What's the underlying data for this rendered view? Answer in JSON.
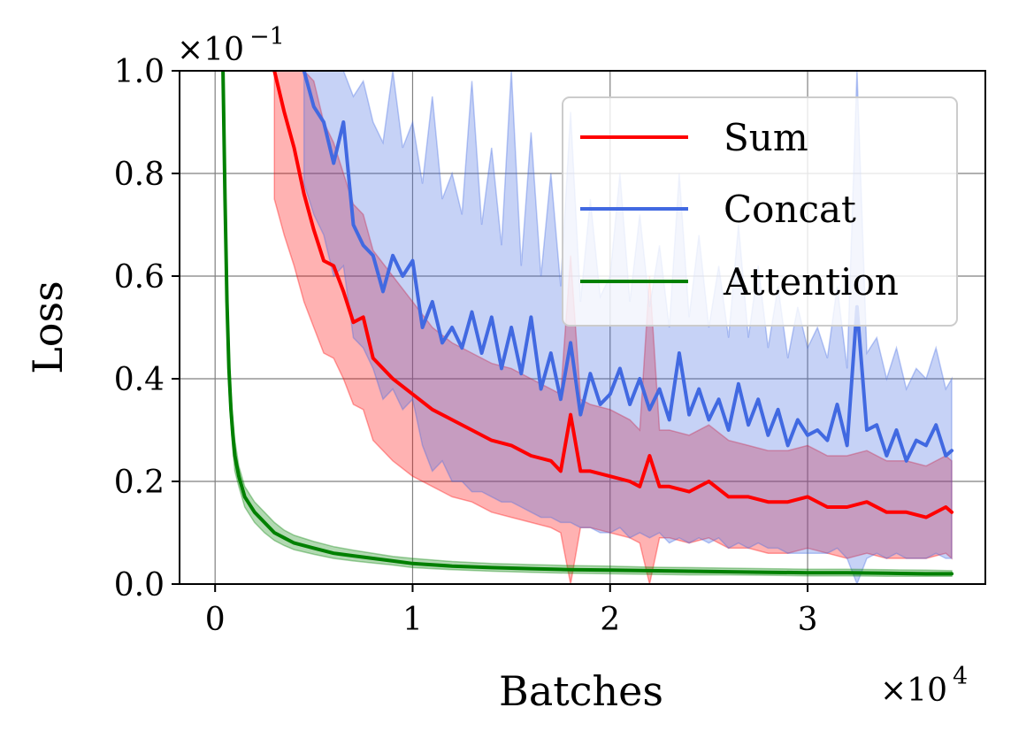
{
  "chart_data": {
    "type": "line",
    "title": "",
    "xlabel": "Batches",
    "ylabel": "Loss",
    "x_multiplier": "×10",
    "x_multiplier_exp": "4",
    "y_multiplier": "×10",
    "y_multiplier_exp": "−1",
    "xlim": [
      -0.18,
      3.9
    ],
    "ylim": [
      0.0,
      1.0
    ],
    "xticks": [
      0,
      1,
      2,
      3
    ],
    "xtick_labels": [
      "0",
      "1",
      "2",
      "3"
    ],
    "yticks": [
      0.0,
      0.2,
      0.4,
      0.6,
      0.8,
      1.0
    ],
    "ytick_labels": [
      "0.0",
      "0.2",
      "0.4",
      "0.6",
      "0.8",
      "1.0"
    ],
    "grid": true,
    "legend_position": "top-right",
    "series": [
      {
        "name": "Sum",
        "color": "#ff0000",
        "x": [
          0.3,
          0.35,
          0.4,
          0.45,
          0.5,
          0.55,
          0.6,
          0.65,
          0.7,
          0.75,
          0.8,
          0.9,
          1.0,
          1.1,
          1.2,
          1.3,
          1.4,
          1.5,
          1.6,
          1.7,
          1.75,
          1.8,
          1.85,
          1.9,
          2.0,
          2.1,
          2.15,
          2.2,
          2.25,
          2.3,
          2.4,
          2.5,
          2.6,
          2.7,
          2.8,
          2.9,
          3.0,
          3.1,
          3.2,
          3.3,
          3.4,
          3.5,
          3.6,
          3.7,
          3.73
        ],
        "values": [
          1.0,
          0.92,
          0.85,
          0.76,
          0.69,
          0.63,
          0.62,
          0.57,
          0.51,
          0.52,
          0.44,
          0.4,
          0.37,
          0.34,
          0.32,
          0.3,
          0.28,
          0.27,
          0.25,
          0.24,
          0.22,
          0.33,
          0.22,
          0.22,
          0.21,
          0.2,
          0.19,
          0.25,
          0.19,
          0.19,
          0.18,
          0.2,
          0.17,
          0.17,
          0.16,
          0.16,
          0.17,
          0.15,
          0.15,
          0.16,
          0.14,
          0.14,
          0.13,
          0.15,
          0.14
        ],
        "band_upper": [
          1.0,
          1.0,
          1.0,
          1.0,
          0.98,
          0.9,
          0.86,
          0.8,
          0.74,
          0.72,
          0.65,
          0.6,
          0.55,
          0.5,
          0.47,
          0.45,
          0.43,
          0.42,
          0.4,
          0.38,
          0.37,
          0.64,
          0.36,
          0.35,
          0.34,
          0.32,
          0.3,
          0.6,
          0.3,
          0.3,
          0.29,
          0.31,
          0.28,
          0.27,
          0.26,
          0.26,
          0.27,
          0.25,
          0.25,
          0.26,
          0.24,
          0.24,
          0.23,
          0.25,
          0.24
        ],
        "band_lower": [
          0.75,
          0.68,
          0.62,
          0.55,
          0.5,
          0.45,
          0.44,
          0.4,
          0.35,
          0.34,
          0.28,
          0.24,
          0.21,
          0.19,
          0.17,
          0.16,
          0.14,
          0.13,
          0.12,
          0.11,
          0.1,
          0.0,
          0.11,
          0.11,
          0.1,
          0.09,
          0.08,
          0.0,
          0.09,
          0.09,
          0.08,
          0.09,
          0.07,
          0.07,
          0.06,
          0.06,
          0.07,
          0.06,
          0.05,
          0.06,
          0.05,
          0.05,
          0.05,
          0.06,
          0.05
        ]
      },
      {
        "name": "Concat",
        "color": "#4169e1",
        "x": [
          0.45,
          0.5,
          0.55,
          0.6,
          0.65,
          0.7,
          0.75,
          0.8,
          0.85,
          0.9,
          0.95,
          1.0,
          1.05,
          1.1,
          1.15,
          1.2,
          1.25,
          1.3,
          1.35,
          1.4,
          1.45,
          1.5,
          1.55,
          1.6,
          1.65,
          1.7,
          1.75,
          1.8,
          1.85,
          1.9,
          1.95,
          2.0,
          2.05,
          2.1,
          2.15,
          2.2,
          2.25,
          2.3,
          2.35,
          2.4,
          2.45,
          2.5,
          2.55,
          2.6,
          2.65,
          2.7,
          2.75,
          2.8,
          2.85,
          2.9,
          2.95,
          3.0,
          3.05,
          3.1,
          3.15,
          3.2,
          3.25,
          3.3,
          3.35,
          3.4,
          3.45,
          3.5,
          3.55,
          3.6,
          3.65,
          3.7,
          3.73
        ],
        "values": [
          1.0,
          0.93,
          0.9,
          0.82,
          0.9,
          0.7,
          0.66,
          0.64,
          0.57,
          0.64,
          0.6,
          0.63,
          0.5,
          0.55,
          0.47,
          0.5,
          0.46,
          0.53,
          0.45,
          0.52,
          0.42,
          0.5,
          0.41,
          0.52,
          0.38,
          0.45,
          0.36,
          0.47,
          0.33,
          0.41,
          0.35,
          0.37,
          0.42,
          0.35,
          0.4,
          0.34,
          0.38,
          0.32,
          0.45,
          0.33,
          0.38,
          0.32,
          0.36,
          0.3,
          0.39,
          0.31,
          0.36,
          0.29,
          0.34,
          0.27,
          0.32,
          0.29,
          0.3,
          0.28,
          0.35,
          0.27,
          0.54,
          0.3,
          0.31,
          0.25,
          0.3,
          0.24,
          0.28,
          0.27,
          0.31,
          0.25,
          0.26
        ],
        "band_upper": [
          1.0,
          1.0,
          1.0,
          1.0,
          1.0,
          0.95,
          0.98,
          0.9,
          0.86,
          1.0,
          0.85,
          0.9,
          0.78,
          0.95,
          0.75,
          0.8,
          0.72,
          0.98,
          0.7,
          0.85,
          0.66,
          1.0,
          0.62,
          0.88,
          0.6,
          0.8,
          0.58,
          0.92,
          0.55,
          0.75,
          0.56,
          0.6,
          0.8,
          0.55,
          0.72,
          0.54,
          0.66,
          0.5,
          0.8,
          0.52,
          0.68,
          0.5,
          0.62,
          0.48,
          0.7,
          0.48,
          0.62,
          0.46,
          0.58,
          0.44,
          0.54,
          0.46,
          0.5,
          0.44,
          0.58,
          0.42,
          1.0,
          0.45,
          0.48,
          0.4,
          0.46,
          0.38,
          0.42,
          0.4,
          0.46,
          0.38,
          0.4
        ],
        "band_lower": [
          0.78,
          0.72,
          0.68,
          0.6,
          0.62,
          0.48,
          0.46,
          0.42,
          0.36,
          0.38,
          0.34,
          0.36,
          0.27,
          0.22,
          0.24,
          0.2,
          0.2,
          0.18,
          0.18,
          0.17,
          0.16,
          0.16,
          0.15,
          0.14,
          0.13,
          0.13,
          0.12,
          0.12,
          0.11,
          0.11,
          0.1,
          0.1,
          0.11,
          0.09,
          0.1,
          0.09,
          0.1,
          0.08,
          0.09,
          0.08,
          0.09,
          0.08,
          0.09,
          0.07,
          0.08,
          0.07,
          0.08,
          0.07,
          0.07,
          0.06,
          0.06,
          0.06,
          0.06,
          0.06,
          0.07,
          0.05,
          0.0,
          0.05,
          0.06,
          0.05,
          0.06,
          0.05,
          0.05,
          0.05,
          0.06,
          0.05,
          0.05
        ]
      },
      {
        "name": "Attention",
        "color": "#008000",
        "x": [
          0.04,
          0.05,
          0.06,
          0.07,
          0.08,
          0.09,
          0.1,
          0.12,
          0.15,
          0.2,
          0.25,
          0.3,
          0.35,
          0.4,
          0.5,
          0.6,
          0.7,
          0.8,
          0.9,
          1.0,
          1.2,
          1.4,
          1.6,
          1.8,
          2.0,
          2.2,
          2.4,
          2.6,
          2.8,
          3.0,
          3.2,
          3.4,
          3.6,
          3.73
        ],
        "values": [
          1.0,
          0.75,
          0.55,
          0.42,
          0.34,
          0.29,
          0.25,
          0.21,
          0.17,
          0.14,
          0.12,
          0.1,
          0.09,
          0.08,
          0.07,
          0.06,
          0.055,
          0.05,
          0.045,
          0.04,
          0.035,
          0.032,
          0.03,
          0.028,
          0.027,
          0.026,
          0.025,
          0.024,
          0.023,
          0.022,
          0.022,
          0.021,
          0.02,
          0.02
        ],
        "band_upper": [
          1.0,
          0.8,
          0.6,
          0.46,
          0.37,
          0.32,
          0.28,
          0.23,
          0.19,
          0.16,
          0.14,
          0.12,
          0.105,
          0.095,
          0.083,
          0.073,
          0.066,
          0.06,
          0.054,
          0.05,
          0.044,
          0.04,
          0.038,
          0.036,
          0.035,
          0.033,
          0.032,
          0.031,
          0.03,
          0.029,
          0.029,
          0.028,
          0.027,
          0.026
        ],
        "band_lower": [
          1.0,
          0.7,
          0.5,
          0.38,
          0.31,
          0.26,
          0.22,
          0.19,
          0.15,
          0.12,
          0.1,
          0.085,
          0.075,
          0.067,
          0.058,
          0.05,
          0.045,
          0.041,
          0.037,
          0.032,
          0.028,
          0.025,
          0.023,
          0.021,
          0.02,
          0.019,
          0.018,
          0.018,
          0.017,
          0.016,
          0.016,
          0.015,
          0.015,
          0.015
        ]
      }
    ]
  }
}
